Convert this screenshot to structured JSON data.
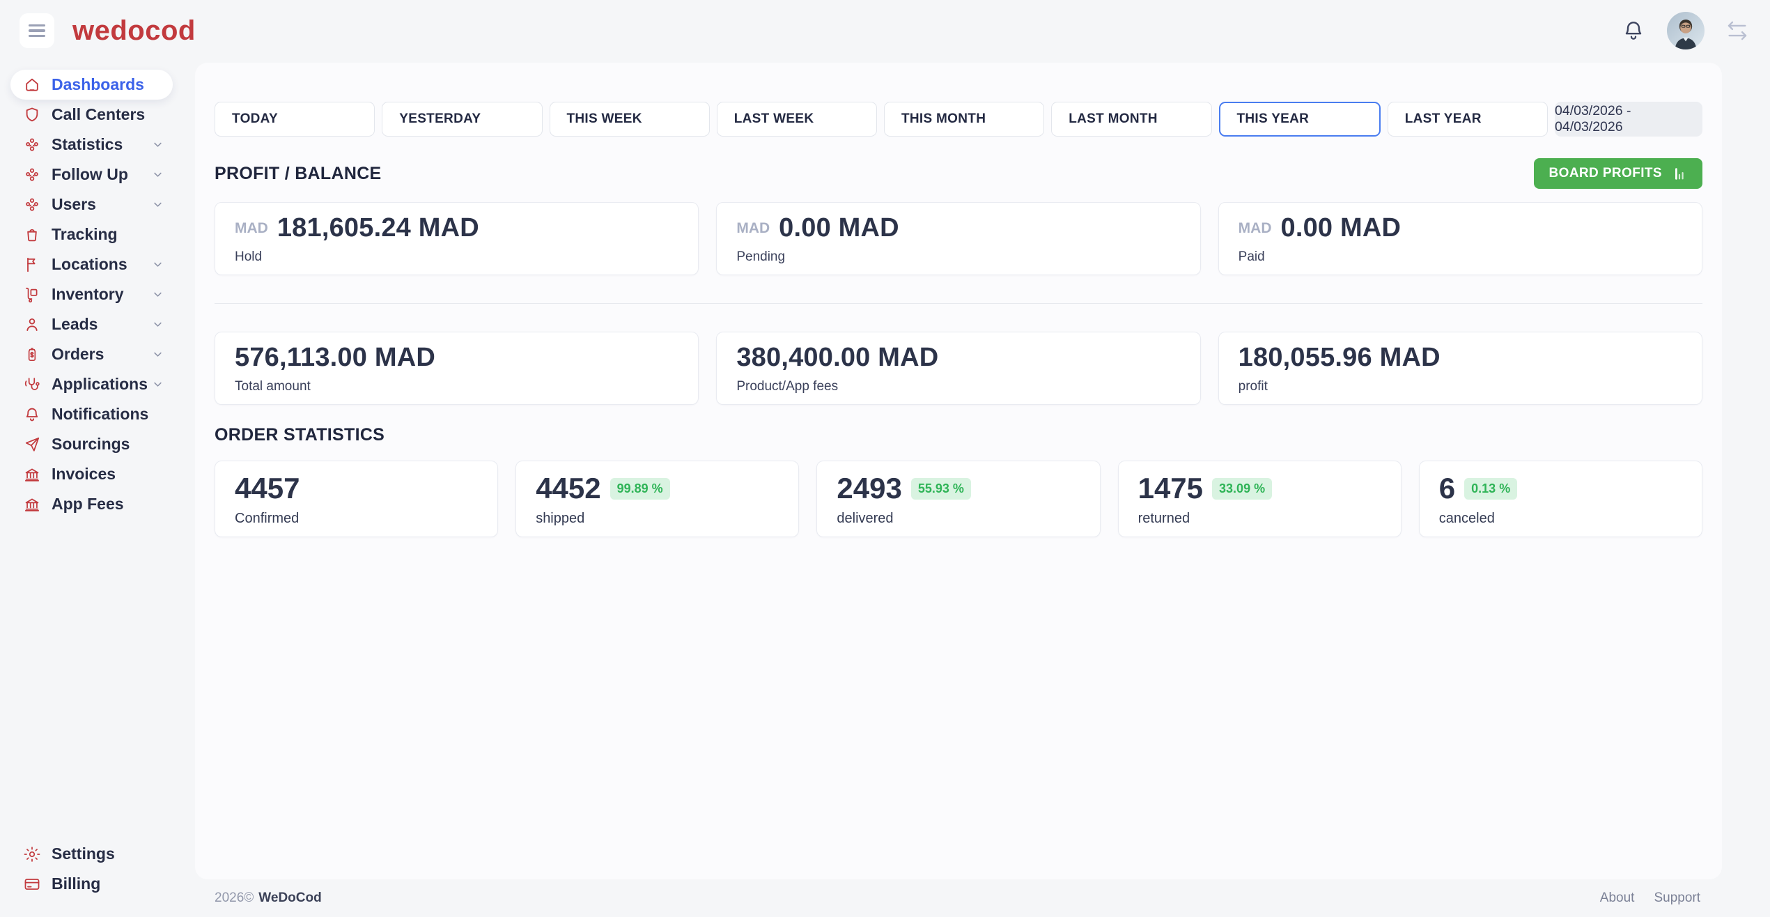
{
  "header": {
    "logo": "wedocod"
  },
  "sidebar": {
    "items": [
      {
        "label": "Dashboards",
        "icon": "home",
        "chevron": false,
        "active": true
      },
      {
        "label": "Call Centers",
        "icon": "shield",
        "chevron": false
      },
      {
        "label": "Statistics",
        "icon": "group",
        "chevron": true
      },
      {
        "label": "Follow Up",
        "icon": "group",
        "chevron": true
      },
      {
        "label": "Users",
        "icon": "group",
        "chevron": true
      },
      {
        "label": "Tracking",
        "icon": "bag",
        "chevron": false
      },
      {
        "label": "Locations",
        "icon": "flag",
        "chevron": true
      },
      {
        "label": "Inventory",
        "icon": "trolley",
        "chevron": true
      },
      {
        "label": "Leads",
        "icon": "person",
        "chevron": true
      },
      {
        "label": "Orders",
        "icon": "price-tag",
        "chevron": true
      },
      {
        "label": "Applications",
        "icon": "stethoscope",
        "chevron": true
      },
      {
        "label": "Notifications",
        "icon": "bell",
        "chevron": false
      },
      {
        "label": "Sourcings",
        "icon": "plane",
        "chevron": false
      },
      {
        "label": "Invoices",
        "icon": "bank",
        "chevron": false
      },
      {
        "label": "App Fees",
        "icon": "bank",
        "chevron": false
      }
    ],
    "bottom_items": [
      {
        "label": "Settings",
        "icon": "gear",
        "chevron": false
      },
      {
        "label": "Billing",
        "icon": "credit-card",
        "chevron": false
      }
    ]
  },
  "filters": {
    "buttons": [
      {
        "label": "TODAY"
      },
      {
        "label": "YESTERDAY"
      },
      {
        "label": "THIS WEEK"
      },
      {
        "label": "LAST WEEK"
      },
      {
        "label": "THIS MONTH"
      },
      {
        "label": "LAST MONTH"
      },
      {
        "label": "THIS YEAR"
      },
      {
        "label": "LAST YEAR"
      }
    ],
    "selected": "THIS YEAR",
    "date_range": "04/03/2026 - 04/03/2026"
  },
  "profit_balance": {
    "title": "PROFIT / BALANCE",
    "board_profits_label": "BOARD PROFITS",
    "row1": [
      {
        "currency": "MAD",
        "value": "181,605.24 MAD",
        "label": "Hold"
      },
      {
        "currency": "MAD",
        "value": "0.00 MAD",
        "label": "Pending"
      },
      {
        "currency": "MAD",
        "value": "0.00 MAD",
        "label": "Paid"
      }
    ],
    "row2": [
      {
        "value": "576,113.00 MAD",
        "label": "Total amount"
      },
      {
        "value": "380,400.00 MAD",
        "label": "Product/App fees"
      },
      {
        "value": "180,055.96 MAD",
        "label": "profit"
      }
    ]
  },
  "order_statistics": {
    "title": "ORDER STATISTICS",
    "cards": [
      {
        "value": "4457",
        "label": "Confirmed",
        "badge": ""
      },
      {
        "value": "4452",
        "label": "shipped",
        "badge": "99.89 %"
      },
      {
        "value": "2493",
        "label": "delivered",
        "badge": "55.93 %"
      },
      {
        "value": "1475",
        "label": "returned",
        "badge": "33.09 %"
      },
      {
        "value": "6",
        "label": "canceled",
        "badge": "0.13 %"
      }
    ]
  },
  "footer": {
    "copyright": "2026©",
    "brand": "WeDoCod",
    "links": [
      "About",
      "Support"
    ]
  },
  "colors": {
    "brand_red": "#c23a3e",
    "active_blue": "#3b62e9",
    "selected_border_blue": "#4a7df0",
    "button_green": "#4caf50",
    "badge_bg_green": "#d9f3e1",
    "badge_text_green": "#2fb457",
    "page_bg": "#f5f6f8",
    "panel_bg": "#fbfbfd"
  }
}
